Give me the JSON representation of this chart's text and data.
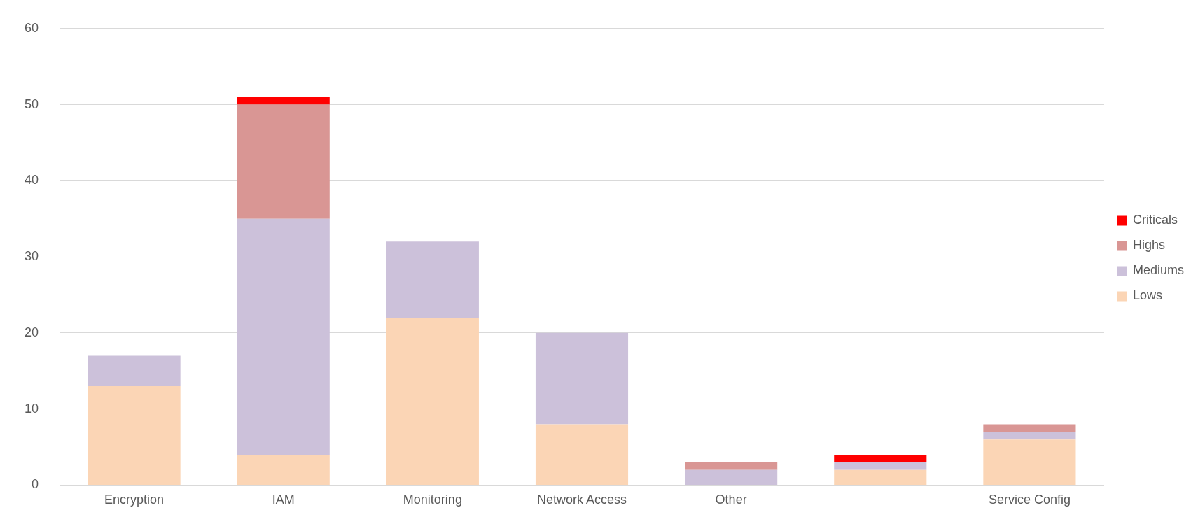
{
  "chart_data": {
    "type": "bar",
    "stacked": true,
    "categories": [
      "Encryption",
      "IAM",
      "Monitoring",
      "Network Access",
      "Other",
      null,
      "Service Config"
    ],
    "series": [
      {
        "name": "Lows",
        "color": "#fbd5b5",
        "values": [
          13,
          4,
          22,
          8,
          0,
          2,
          6
        ]
      },
      {
        "name": "Mediums",
        "color": "#ccc1da",
        "values": [
          4,
          31,
          10,
          12,
          2,
          1,
          1
        ]
      },
      {
        "name": "Highs",
        "color": "#d99694",
        "values": [
          0,
          15,
          0,
          0,
          1,
          0,
          1
        ]
      },
      {
        "name": "Criticals",
        "color": "#ff0000",
        "values": [
          0,
          1,
          0,
          0,
          0,
          1,
          0
        ]
      }
    ],
    "ylim": [
      0,
      60
    ],
    "yticks": [
      0,
      10,
      20,
      30,
      40,
      50,
      60
    ],
    "grid": "y",
    "legend": "right"
  }
}
